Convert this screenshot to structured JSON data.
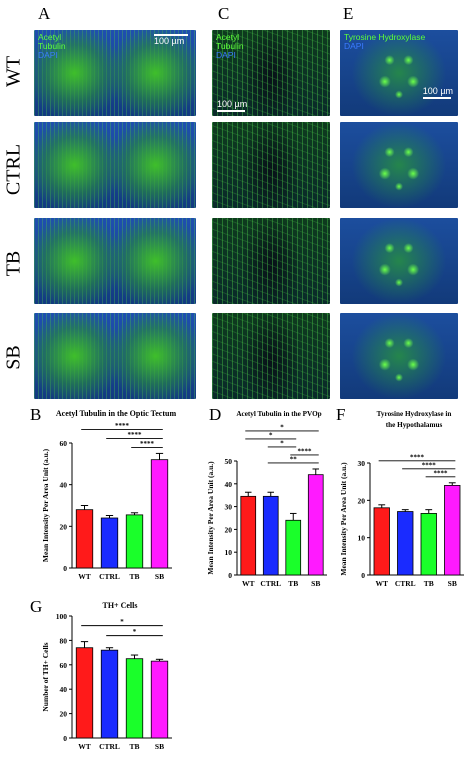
{
  "panel_letters": {
    "A": "A",
    "C": "C",
    "E": "E",
    "B": "B",
    "D": "D",
    "F": "F",
    "G": "G"
  },
  "row_labels": [
    "WT",
    "CTRL",
    "TB",
    "SB"
  ],
  "micro": {
    "A_stain": [
      "Acetyl",
      "Tubulin",
      "DAPI"
    ],
    "A_scale": "100 µm",
    "C_stain": [
      "Acetyl",
      "Tubulin",
      "DAPI"
    ],
    "C_scale": "100 µm",
    "E_stain": [
      "Tyrosine Hydroxylase",
      "DAPI"
    ],
    "E_scale": "100 µm",
    "colors": {
      "green": "#3fbf2a",
      "blue": "#1f4fb0",
      "dark": "#06101c"
    }
  },
  "chart_data": [
    {
      "id": "B",
      "type": "bar",
      "title": [
        "Acetyl Tubulin in the Optic Tectum"
      ],
      "ylabel": "Mean Intensity Per Area Unit (a.u.)",
      "categories": [
        "WT",
        "CTRL",
        "TB",
        "SB"
      ],
      "values": [
        28,
        24,
        25.5,
        52
      ],
      "errors": [
        2,
        1.2,
        1,
        3
      ],
      "colors": [
        "#ff1a1a",
        "#1a2bff",
        "#1aff2a",
        "#ff1aff"
      ],
      "ylim": [
        0,
        60
      ],
      "yticks": [
        0,
        20,
        40,
        60
      ],
      "significance": [
        {
          "from": 0,
          "to": 3,
          "label": "****"
        },
        {
          "from": 1,
          "to": 3,
          "label": "****"
        },
        {
          "from": 2,
          "to": 3,
          "label": "****"
        }
      ]
    },
    {
      "id": "D",
      "type": "bar",
      "title": [
        "Acetyl Tubulin in the PVOp"
      ],
      "ylabel": "Mean Intensity Per Area Unit (a.u.)",
      "categories": [
        "WT",
        "CTRL",
        "TB",
        "SB"
      ],
      "values": [
        34.5,
        34.5,
        24,
        44
      ],
      "errors": [
        1.8,
        1.8,
        3,
        2.5
      ],
      "colors": [
        "#ff1a1a",
        "#1a2bff",
        "#1aff2a",
        "#ff1aff"
      ],
      "ylim": [
        0,
        50
      ],
      "yticks": [
        0,
        10,
        20,
        30,
        40,
        50
      ],
      "significance": [
        {
          "from": 0,
          "to": 3,
          "label": "*"
        },
        {
          "from": 0,
          "to": 2,
          "label": "*"
        },
        {
          "from": 1,
          "to": 2,
          "label": "*"
        },
        {
          "from": 2,
          "to": 3,
          "label": "****"
        },
        {
          "from": 1,
          "to": 3,
          "label": "**"
        }
      ]
    },
    {
      "id": "F",
      "type": "bar",
      "title": [
        "Tyrosine Hydroxylase in",
        "the Hypothalamus"
      ],
      "ylabel": "Mean Intensity Per Area Unit (a.u.)",
      "categories": [
        "WT",
        "CTRL",
        "TB",
        "SB"
      ],
      "values": [
        18,
        17,
        16.5,
        24
      ],
      "errors": [
        0.8,
        0.5,
        1,
        0.7
      ],
      "colors": [
        "#ff1a1a",
        "#1a2bff",
        "#1aff2a",
        "#ff1aff"
      ],
      "ylim": [
        0,
        30
      ],
      "yticks": [
        0,
        10,
        20,
        30
      ],
      "significance": [
        {
          "from": 0,
          "to": 3,
          "label": "****"
        },
        {
          "from": 1,
          "to": 3,
          "label": "****"
        },
        {
          "from": 2,
          "to": 3,
          "label": "****"
        }
      ]
    },
    {
      "id": "G",
      "type": "bar",
      "title": [
        "TH+ Cells"
      ],
      "ylabel": "Number of TH+ Cells",
      "categories": [
        "WT",
        "CTRL",
        "TB",
        "SB"
      ],
      "values": [
        74,
        72,
        65,
        63
      ],
      "errors": [
        5,
        2,
        3,
        1.5
      ],
      "colors": [
        "#ff1a1a",
        "#1a2bff",
        "#1aff2a",
        "#ff1aff"
      ],
      "ylim": [
        0,
        100
      ],
      "yticks": [
        0,
        20,
        40,
        60,
        80,
        100
      ],
      "significance": [
        {
          "from": 0,
          "to": 3,
          "label": "*"
        },
        {
          "from": 1,
          "to": 3,
          "label": "*"
        }
      ]
    }
  ]
}
